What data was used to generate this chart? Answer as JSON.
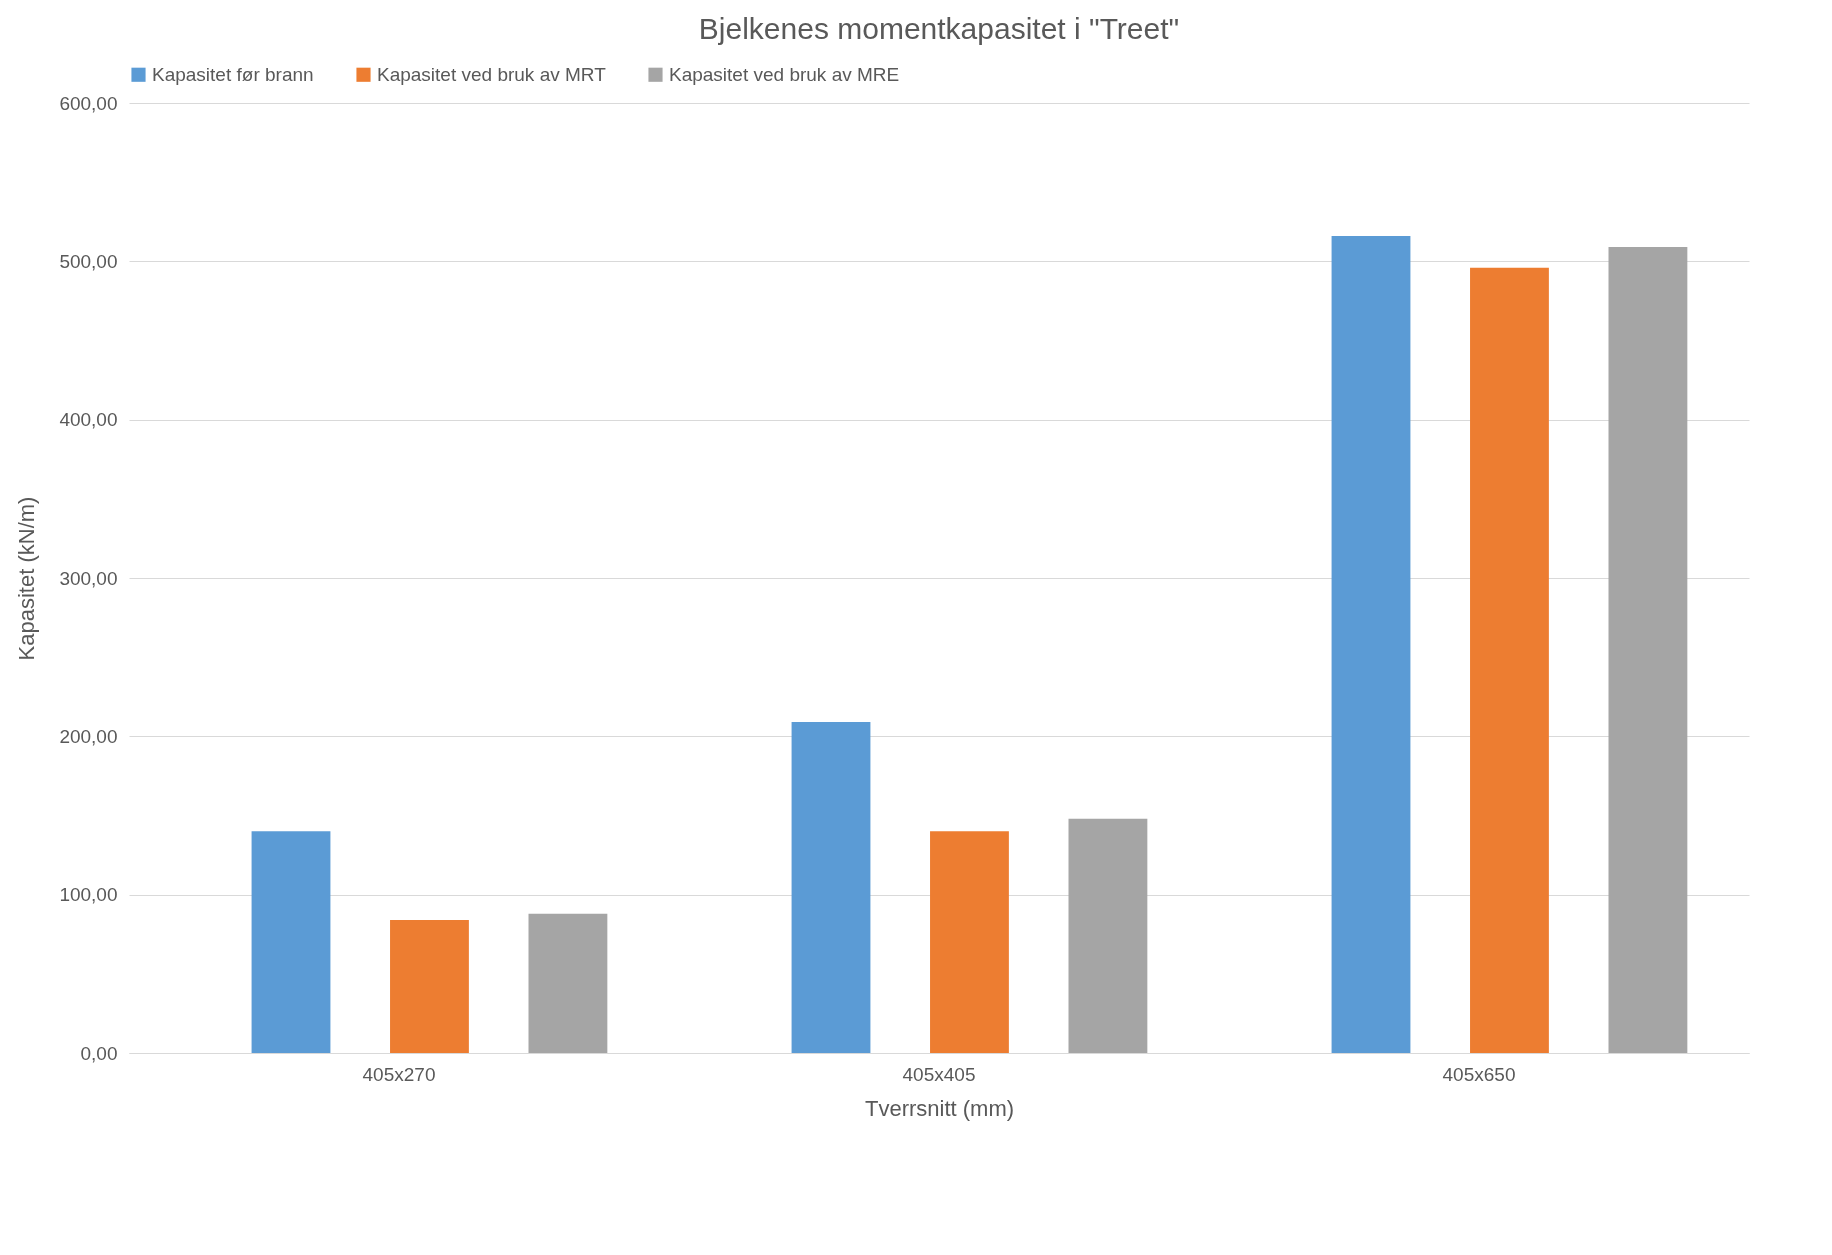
{
  "chart_data": {
    "type": "bar",
    "title": "Bjelkenes momentkapasitet i \"Treet\"",
    "xlabel": "Tverrsnitt (mm)",
    "ylabel": "Kapasitet (kN/m)",
    "categories": [
      "405x270",
      "405x405",
      "405x650"
    ],
    "series": [
      {
        "name": "Kapasitet før brann",
        "color": "#5b9bd5",
        "values": [
          140,
          209,
          516
        ]
      },
      {
        "name": "Kapasitet ved bruk av MRT",
        "color": "#ed7d31",
        "values": [
          84,
          140,
          496
        ]
      },
      {
        "name": "Kapasitet ved bruk av MRE",
        "color": "#a5a5a5",
        "values": [
          88,
          148,
          509
        ]
      }
    ],
    "ylim": [
      0,
      600
    ],
    "yticks": [
      {
        "value": 0,
        "label": "0,00"
      },
      {
        "value": 100,
        "label": "100,00"
      },
      {
        "value": 200,
        "label": "200,00"
      },
      {
        "value": 300,
        "label": "300,00"
      },
      {
        "value": 400,
        "label": "400,00"
      },
      {
        "value": 500,
        "label": "500,00"
      },
      {
        "value": 600,
        "label": "600,00"
      }
    ],
    "grid": "y",
    "legend": "top"
  }
}
